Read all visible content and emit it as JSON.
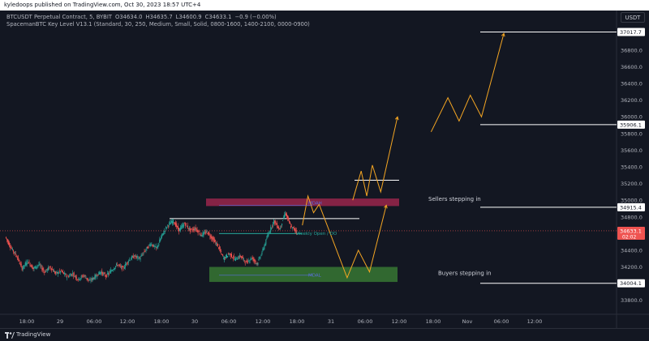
{
  "header": {
    "published_text": "kyledoops published on TradingView.com, Oct 30, 2023 18:57 UTC+4"
  },
  "legend": {
    "symbol": "BTCUSDT Perpetual Contract, 5, BYBIT",
    "open": "O34634.0",
    "high": "H34635.7",
    "low": "L34600.9",
    "close": "C34633.1",
    "change": "−0.9 (−0.00%)",
    "indicator": "SpacemanBTC Key Level V13.1 (Standard, 30, 250, Medium, Small, Solid, 0800-1600, 1400-2100, 0000-0900)"
  },
  "price_axis": {
    "currency": "USDT",
    "ticks": [
      "37000.0",
      "36800.0",
      "36600.0",
      "36400.0",
      "36200.0",
      "36000.0",
      "35800.0",
      "35600.0",
      "35400.0",
      "35200.0",
      "35000.0",
      "34800.0",
      "34600.0",
      "34400.0",
      "34200.0",
      "34000.0",
      "33800.0"
    ]
  },
  "price_labels": [
    {
      "text": "37017.7",
      "value": 37017.7
    },
    {
      "text": "35906.1",
      "value": 35906.1
    },
    {
      "text": "34915.4",
      "value": 34915.4
    },
    {
      "text": "34004.1",
      "value": 34004.1
    }
  ],
  "current_price": {
    "price": "34633.1",
    "countdown": "02:02",
    "value": 34633.1,
    "color": "#ef5350"
  },
  "time_axis": [
    "18:00",
    "29",
    "06:00",
    "12:00",
    "18:00",
    "30",
    "06:00",
    "12:00",
    "18:00",
    "31",
    "06:00",
    "12:00",
    "18:00",
    "Nov",
    "06:00",
    "12:00"
  ],
  "annotations": {
    "sellers": "Sellers stepping in",
    "buyers": "Buyers stepping in",
    "mdah": "MDAH",
    "mdal": "MDAL",
    "weekly_open": "Weekly Open / DO"
  },
  "footer": {
    "brand": "TradingView"
  },
  "colors": {
    "background": "#131722",
    "up_candle": "#26a69a",
    "down_candle": "#ef5350",
    "supply_zone": "#a3274f",
    "demand_zone": "#3a7d35",
    "projection": "#f5a623",
    "level_line": "#ffffff"
  },
  "chart_data": {
    "type": "candlestick",
    "instrument": "BTCUSDT",
    "timeframe": "5",
    "ylim": [
      33700,
      37100
    ],
    "price_series": [
      {
        "time": "28 14:00",
        "price": 34560
      },
      {
        "time": "28 15:00",
        "price": 34430
      },
      {
        "time": "28 16:00",
        "price": 34330
      },
      {
        "time": "28 17:00",
        "price": 34180
      },
      {
        "time": "28 18:00",
        "price": 34270
      },
      {
        "time": "28 19:00",
        "price": 34180
      },
      {
        "time": "28 20:00",
        "price": 34230
      },
      {
        "time": "28 21:00",
        "price": 34140
      },
      {
        "time": "28 22:00",
        "price": 34200
      },
      {
        "time": "28 23:00",
        "price": 34120
      },
      {
        "time": "29 00:00",
        "price": 34150
      },
      {
        "time": "29 01:00",
        "price": 34080
      },
      {
        "time": "29 02:00",
        "price": 34120
      },
      {
        "time": "29 03:00",
        "price": 34050
      },
      {
        "time": "29 04:00",
        "price": 34100
      },
      {
        "time": "29 05:00",
        "price": 34030
      },
      {
        "time": "29 06:00",
        "price": 34080
      },
      {
        "time": "29 07:00",
        "price": 34140
      },
      {
        "time": "29 08:00",
        "price": 34090
      },
      {
        "time": "29 09:00",
        "price": 34160
      },
      {
        "time": "29 10:00",
        "price": 34230
      },
      {
        "time": "29 11:00",
        "price": 34180
      },
      {
        "time": "29 12:00",
        "price": 34280
      },
      {
        "time": "29 13:00",
        "price": 34330
      },
      {
        "time": "29 14:00",
        "price": 34300
      },
      {
        "time": "29 15:00",
        "price": 34400
      },
      {
        "time": "29 16:00",
        "price": 34480
      },
      {
        "time": "29 17:00",
        "price": 34420
      },
      {
        "time": "29 18:00",
        "price": 34580
      },
      {
        "time": "29 19:00",
        "price": 34700
      },
      {
        "time": "29 20:00",
        "price": 34750
      },
      {
        "time": "29 21:00",
        "price": 34640
      },
      {
        "time": "29 22:00",
        "price": 34720
      },
      {
        "time": "29 23:00",
        "price": 34640
      },
      {
        "time": "30 00:00",
        "price": 34660
      },
      {
        "time": "30 01:00",
        "price": 34580
      },
      {
        "time": "30 02:00",
        "price": 34620
      },
      {
        "time": "30 03:00",
        "price": 34540
      },
      {
        "time": "30 04:00",
        "price": 34450
      },
      {
        "time": "30 05:00",
        "price": 34300
      },
      {
        "time": "30 06:00",
        "price": 34360
      },
      {
        "time": "30 07:00",
        "price": 34290
      },
      {
        "time": "30 08:00",
        "price": 34330
      },
      {
        "time": "30 09:00",
        "price": 34250
      },
      {
        "time": "30 10:00",
        "price": 34310
      },
      {
        "time": "30 11:00",
        "price": 34240
      },
      {
        "time": "30 12:00",
        "price": 34400
      },
      {
        "time": "30 13:00",
        "price": 34600
      },
      {
        "time": "30 14:00",
        "price": 34750
      },
      {
        "time": "30 15:00",
        "price": 34650
      },
      {
        "time": "30 16:00",
        "price": 34850
      },
      {
        "time": "30 17:00",
        "price": 34680
      },
      {
        "time": "30 18:00",
        "price": 34633
      }
    ],
    "zones": [
      {
        "name": "supply",
        "top": 35020,
        "bottom": 34930
      },
      {
        "name": "demand",
        "top": 34200,
        "bottom": 34020
      }
    ],
    "levels": [
      {
        "label": "37017.7",
        "value": 37017.7
      },
      {
        "label": "35906.1",
        "value": 35906.1
      },
      {
        "label": "34915.4",
        "value": 34915.4
      },
      {
        "label": "34004.1",
        "value": 34004.1
      },
      {
        "value": 35240
      },
      {
        "value": 34780
      },
      {
        "value": 34600
      }
    ],
    "projections": [
      {
        "name": "down-then-up",
        "points": [
          {
            "time": "30 19:00",
            "price": 34700
          },
          {
            "time": "30 20:00",
            "price": 35050
          },
          {
            "time": "30 21:00",
            "price": 34850
          },
          {
            "time": "30 22:00",
            "price": 34950
          },
          {
            "time": "31 03:00",
            "price": 34070
          },
          {
            "time": "31 05:00",
            "price": 34400
          },
          {
            "time": "31 07:00",
            "price": 34140
          },
          {
            "time": "31 10:00",
            "price": 34940
          }
        ]
      },
      {
        "name": "up-then-up",
        "points": [
          {
            "time": "31 04:00",
            "price": 35000
          },
          {
            "time": "31 05:30",
            "price": 35350
          },
          {
            "time": "31 06:30",
            "price": 35050
          },
          {
            "time": "31 07:30",
            "price": 35420
          },
          {
            "time": "31 09:00",
            "price": 35100
          },
          {
            "time": "31 12:00",
            "price": 36000
          }
        ]
      },
      {
        "name": "continuation",
        "points": [
          {
            "time": "31 18:00",
            "price": 35820
          },
          {
            "time": "31 21:00",
            "price": 36230
          },
          {
            "time": "31 23:00",
            "price": 35950
          },
          {
            "time": "1 01:00",
            "price": 36260
          },
          {
            "time": "1 03:00",
            "price": 36000
          },
          {
            "time": "1 07:00",
            "price": 37000
          }
        ]
      }
    ]
  }
}
